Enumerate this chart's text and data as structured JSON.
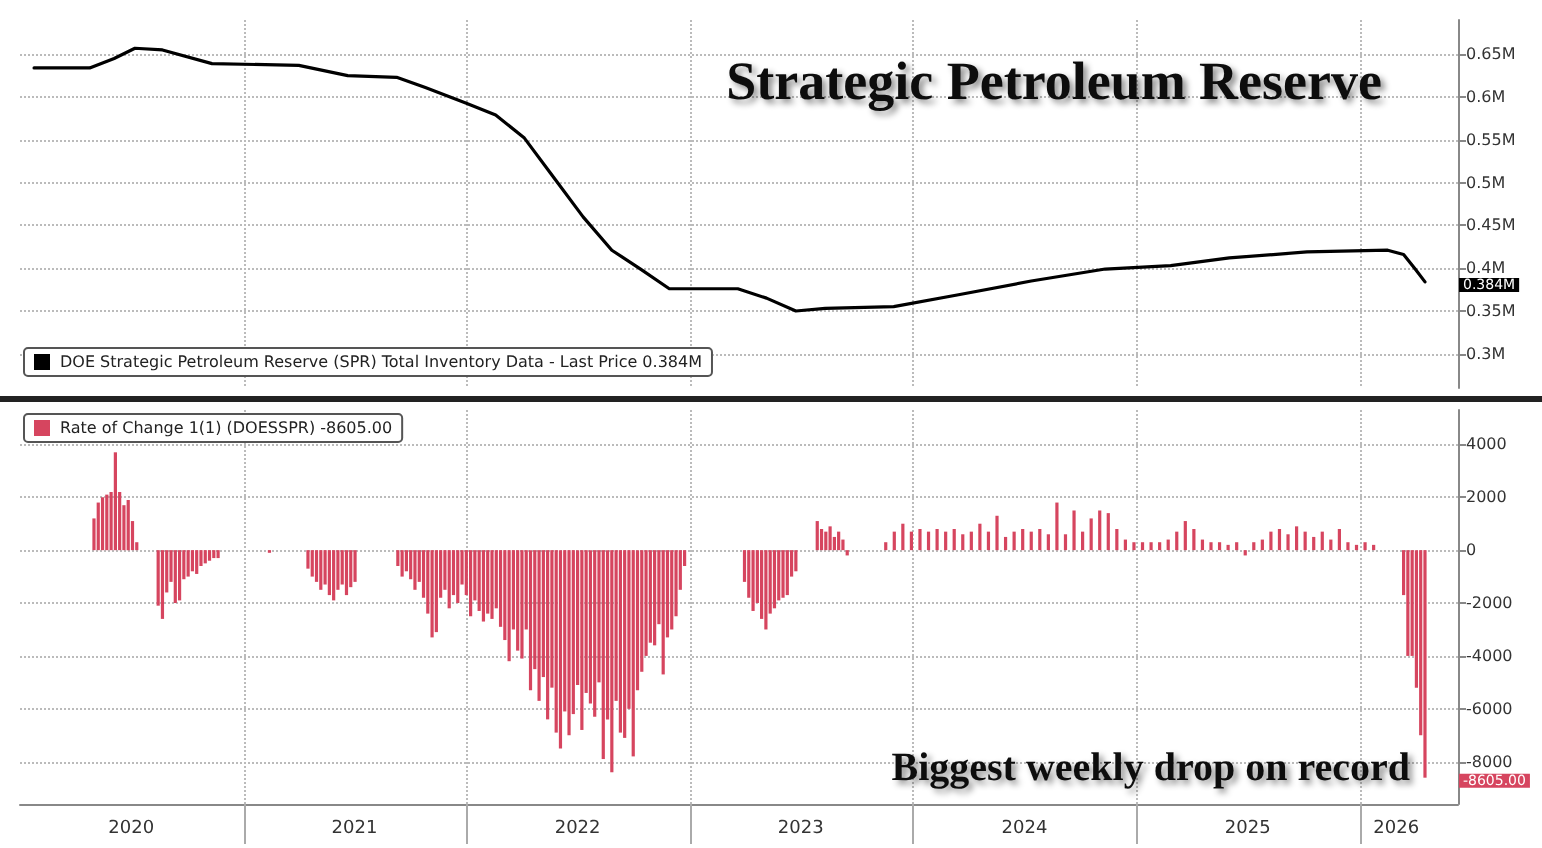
{
  "chart_data": [
    {
      "type": "line",
      "title": "Strategic Petroleum Reserve",
      "x": [
        "2020-01-24",
        "2020-04-24",
        "2020-06-03",
        "2020-07-07",
        "2020-08-21",
        "2020-11-10",
        "2021-04-01",
        "2021-06-20",
        "2021-09-08",
        "2021-10-25",
        "2021-12-30",
        "2022-02-17",
        "2022-04-05",
        "2022-05-23",
        "2022-07-10",
        "2022-08-26",
        "2022-10-12",
        "2022-11-28",
        "2023-03-20",
        "2023-05-06",
        "2023-06-23",
        "2023-08-10",
        "2023-11-30",
        "2024-03-15",
        "2024-07-12",
        "2024-11-10",
        "2025-02-25",
        "2025-06-01",
        "2025-10-06",
        "2026-02-15",
        "2026-03-13",
        "2026-04-01",
        "2026-04-17"
      ],
      "series": [
        {
          "name": "DOE Strategic Petroleum Reserve (SPR) Total Inventory Data - Last Price 0.384M",
          "color": "#000000",
          "values": [
            0.634,
            0.634,
            0.645,
            0.657,
            0.655,
            0.639,
            0.637,
            0.625,
            0.623,
            0.611,
            0.593,
            0.579,
            0.552,
            0.506,
            0.46,
            0.421,
            0.399,
            0.376,
            0.376,
            0.365,
            0.35,
            0.353,
            0.355,
            0.369,
            0.385,
            0.399,
            0.403,
            0.412,
            0.419,
            0.421,
            0.416,
            0.399,
            0.384
          ]
        }
      ],
      "xlim": [
        "2020-01-01",
        "2026-06-10"
      ],
      "xticks": [
        {
          "value": "2021-01-01",
          "label": null
        },
        {
          "value": "2022-01-01",
          "label": null
        },
        {
          "value": "2023-01-01",
          "label": null
        },
        {
          "value": "2024-01-01",
          "label": null
        },
        {
          "value": "2025-01-01",
          "label": null
        },
        {
          "value": "2026-01-01",
          "label": null
        }
      ],
      "ylim": [
        0.26,
        0.69
      ],
      "yticks": [
        {
          "value": 0.3,
          "label": "0.3M"
        },
        {
          "value": 0.35,
          "label": "0.35M"
        },
        {
          "value": 0.4,
          "label": "0.4M"
        },
        {
          "value": 0.45,
          "label": "0.45M"
        },
        {
          "value": 0.5,
          "label": "0.5M"
        },
        {
          "value": 0.55,
          "label": "0.55M"
        },
        {
          "value": 0.6,
          "label": "0.6M"
        },
        {
          "value": 0.65,
          "label": "0.65M"
        }
      ],
      "tick_labels": "y",
      "grid": true,
      "legend": "bottom left",
      "marker": "none",
      "annotations": [
        {
          "text": "0.384M",
          "x": "2026-04-17",
          "y": 0.384
        }
      ]
    },
    {
      "type": "bar",
      "x": [
        "2020-05-01",
        "2020-05-08",
        "2020-05-15",
        "2020-05-22",
        "2020-05-29",
        "2020-06-05",
        "2020-06-12",
        "2020-06-19",
        "2020-06-26",
        "2020-07-03",
        "2020-07-10",
        "2020-08-14",
        "2020-08-21",
        "2020-08-28",
        "2020-09-04",
        "2020-09-11",
        "2020-09-18",
        "2020-09-25",
        "2020-10-02",
        "2020-10-09",
        "2020-10-16",
        "2020-10-23",
        "2020-10-30",
        "2020-11-06",
        "2020-11-13",
        "2020-11-20",
        "2021-02-12",
        "2021-04-16",
        "2021-04-23",
        "2021-04-30",
        "2021-05-07",
        "2021-05-14",
        "2021-05-21",
        "2021-05-28",
        "2021-06-04",
        "2021-06-11",
        "2021-06-18",
        "2021-06-25",
        "2021-07-02",
        "2021-09-10",
        "2021-09-17",
        "2021-09-24",
        "2021-10-01",
        "2021-10-08",
        "2021-10-15",
        "2021-10-22",
        "2021-10-29",
        "2021-11-05",
        "2021-11-12",
        "2021-11-19",
        "2021-11-26",
        "2021-12-03",
        "2021-12-10",
        "2021-12-17",
        "2021-12-24",
        "2021-12-31",
        "2022-01-07",
        "2022-01-14",
        "2022-01-21",
        "2022-01-28",
        "2022-02-04",
        "2022-02-11",
        "2022-02-18",
        "2022-02-25",
        "2022-03-04",
        "2022-03-11",
        "2022-03-18",
        "2022-03-25",
        "2022-04-01",
        "2022-04-08",
        "2022-04-15",
        "2022-04-22",
        "2022-04-29",
        "2022-05-06",
        "2022-05-13",
        "2022-05-20",
        "2022-05-27",
        "2022-06-03",
        "2022-06-10",
        "2022-06-17",
        "2022-06-24",
        "2022-07-01",
        "2022-07-08",
        "2022-07-15",
        "2022-07-22",
        "2022-07-29",
        "2022-08-05",
        "2022-08-12",
        "2022-08-19",
        "2022-08-26",
        "2022-09-02",
        "2022-09-09",
        "2022-09-16",
        "2022-09-23",
        "2022-09-30",
        "2022-10-07",
        "2022-10-14",
        "2022-10-21",
        "2022-10-28",
        "2022-11-04",
        "2022-11-11",
        "2022-11-18",
        "2022-11-25",
        "2022-12-02",
        "2022-12-09",
        "2022-12-16",
        "2022-12-23",
        "2023-03-31",
        "2023-04-07",
        "2023-04-14",
        "2023-04-21",
        "2023-04-28",
        "2023-05-05",
        "2023-05-12",
        "2023-05-19",
        "2023-05-26",
        "2023-06-02",
        "2023-06-09",
        "2023-06-16",
        "2023-06-23",
        "2023-07-28",
        "2023-08-04",
        "2023-08-11",
        "2023-08-18",
        "2023-08-25",
        "2023-09-01",
        "2023-09-08",
        "2023-09-15",
        "2023-11-17",
        "2023-12-01",
        "2023-12-15",
        "2023-12-29",
        "2024-01-12",
        "2024-01-26",
        "2024-02-09",
        "2024-02-23",
        "2024-03-08",
        "2024-03-22",
        "2024-04-05",
        "2024-04-19",
        "2024-05-03",
        "2024-05-17",
        "2024-05-31",
        "2024-06-14",
        "2024-06-28",
        "2024-07-12",
        "2024-07-26",
        "2024-08-09",
        "2024-08-23",
        "2024-09-06",
        "2024-09-20",
        "2024-10-04",
        "2024-10-18",
        "2024-11-01",
        "2024-11-15",
        "2024-11-29",
        "2024-12-13",
        "2024-12-27",
        "2025-01-10",
        "2025-01-24",
        "2025-02-07",
        "2025-02-21",
        "2025-03-07",
        "2025-03-21",
        "2025-04-04",
        "2025-04-18",
        "2025-05-02",
        "2025-05-16",
        "2025-05-30",
        "2025-06-13",
        "2025-06-27",
        "2025-07-11",
        "2025-07-25",
        "2025-08-08",
        "2025-08-22",
        "2025-09-05",
        "2025-09-19",
        "2025-10-03",
        "2025-10-17",
        "2025-10-31",
        "2025-11-14",
        "2025-11-28",
        "2025-12-12",
        "2025-12-26",
        "2026-01-09",
        "2026-01-23",
        "2026-03-13",
        "2026-03-20",
        "2026-03-27",
        "2026-04-03",
        "2026-04-10",
        "2026-04-17"
      ],
      "series": [
        {
          "name": "Rate of Change 1(1) (DOESSPR) -8605.00",
          "color": "#d6455f",
          "values": [
            1200,
            1800,
            2000,
            2100,
            2200,
            3700,
            2200,
            1700,
            1900,
            1100,
            300,
            -2100,
            -2600,
            -1600,
            -1200,
            -2000,
            -1900,
            -1100,
            -1000,
            -800,
            -900,
            -600,
            -500,
            -400,
            -300,
            -300,
            -100,
            -700,
            -1000,
            -1200,
            -1500,
            -1300,
            -1700,
            -1900,
            -1500,
            -1300,
            -1700,
            -1400,
            -1200,
            -600,
            -1000,
            -800,
            -1100,
            -1500,
            -1200,
            -1800,
            -2400,
            -3300,
            -3100,
            -1800,
            -1500,
            -2200,
            -1700,
            -2000,
            -1300,
            -1700,
            -2500,
            -1900,
            -2300,
            -2700,
            -2400,
            -2600,
            -2200,
            -2900,
            -3400,
            -4200,
            -3000,
            -3800,
            -4100,
            -3000,
            -5300,
            -4500,
            -5700,
            -4800,
            -6400,
            -5200,
            -6900,
            -7500,
            -6100,
            -7000,
            -6200,
            -5100,
            -6800,
            -5400,
            -5800,
            -6300,
            -5000,
            -7900,
            -6400,
            -8400,
            -5700,
            -6900,
            -7100,
            -6000,
            -7800,
            -5300,
            -4600,
            -4000,
            -3500,
            -3600,
            -2800,
            -4700,
            -3300,
            -3000,
            -2500,
            -1500,
            -600,
            -1200,
            -1800,
            -2300,
            -2000,
            -2600,
            -3000,
            -2400,
            -2200,
            -1900,
            -1800,
            -1700,
            -1000,
            -800,
            1100,
            800,
            700,
            900,
            500,
            700,
            400,
            -200,
            300,
            700,
            1000,
            700,
            800,
            700,
            800,
            700,
            800,
            600,
            700,
            1000,
            700,
            1300,
            500,
            700,
            800,
            700,
            800,
            600,
            1800,
            600,
            1500,
            700,
            1200,
            1500,
            1400,
            800,
            400,
            300,
            300,
            300,
            300,
            400,
            700,
            1100,
            800,
            400,
            300,
            300,
            200,
            300,
            -200,
            300,
            400,
            700,
            800,
            600,
            900,
            700,
            500,
            700,
            400,
            800,
            300,
            200,
            300,
            200,
            -1700,
            -4000,
            -4000,
            -5200,
            -7000,
            -8605
          ]
        }
      ],
      "xlim": [
        "2020-01-01",
        "2026-06-10"
      ],
      "xticks": [
        {
          "value": "2020-07-01",
          "label": "2020"
        },
        {
          "value": "2021-01-01",
          "label": null
        },
        {
          "value": "2021-07-01",
          "label": "2021"
        },
        {
          "value": "2022-01-01",
          "label": null
        },
        {
          "value": "2022-07-01",
          "label": "2022"
        },
        {
          "value": "2023-01-01",
          "label": null
        },
        {
          "value": "2023-07-01",
          "label": "2023"
        },
        {
          "value": "2024-01-01",
          "label": null
        },
        {
          "value": "2024-07-01",
          "label": "2024"
        },
        {
          "value": "2025-01-01",
          "label": null
        },
        {
          "value": "2025-07-01",
          "label": "2025"
        },
        {
          "value": "2026-01-01",
          "label": null
        },
        {
          "value": "2026-03-01",
          "label": "2026"
        }
      ],
      "ylim": [
        -9600,
        5300
      ],
      "yticks": [
        -8000,
        -6000,
        -4000,
        -2000,
        0,
        2000,
        4000
      ],
      "grid": true,
      "legend": "top left",
      "annotations": [
        "Biggest weekly drop on record",
        {
          "text": "-8605.00",
          "x": "2026-04-17",
          "y": -8605
        }
      ]
    }
  ]
}
